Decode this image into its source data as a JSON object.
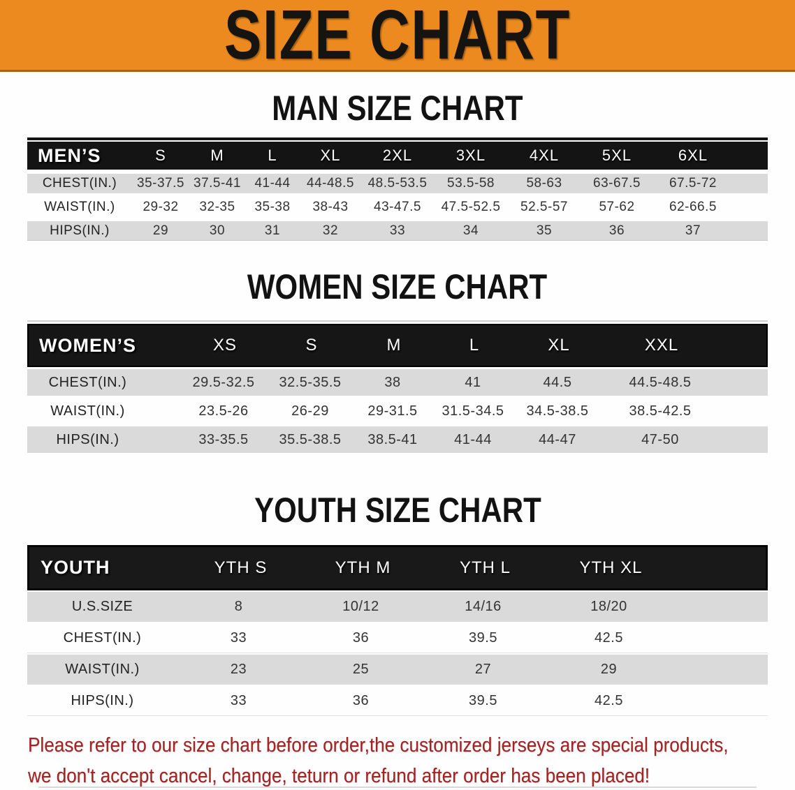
{
  "banner": {
    "title": "SIZE CHART"
  },
  "men": {
    "heading": "MAN SIZE CHART",
    "header": {
      "label": "MEN’S",
      "sizes": [
        "S",
        "M",
        "L",
        "XL",
        "2XL",
        "3XL",
        "4XL",
        "5XL",
        "6XL"
      ]
    },
    "rows": [
      {
        "label": "CHEST(IN.)",
        "values": [
          "35-37.5",
          "37.5-41",
          "41-44",
          "44-48.5",
          "48.5-53.5",
          "53.5-58",
          "58-63",
          "63-67.5",
          "67.5-72"
        ]
      },
      {
        "label": "WAIST(IN.)",
        "values": [
          "29-32",
          "32-35",
          "35-38",
          "38-43",
          "43-47.5",
          "47.5-52.5",
          "52.5-57",
          "57-62",
          "62-66.5"
        ]
      },
      {
        "label": "HIPS(IN.)",
        "values": [
          "29",
          "30",
          "31",
          "32",
          "33",
          "34",
          "35",
          "36",
          "37"
        ]
      }
    ]
  },
  "women": {
    "heading": "WOMEN SIZE CHART",
    "header": {
      "label": "WOMEN’S",
      "sizes": [
        "XS",
        "S",
        "M",
        "L",
        "XL",
        "XXL"
      ]
    },
    "rows": [
      {
        "label": "CHEST(IN.)",
        "values": [
          "29.5-32.5",
          "32.5-35.5",
          "38",
          "41",
          "44.5",
          "44.5-48.5"
        ]
      },
      {
        "label": "WAIST(IN.)",
        "values": [
          "23.5-26",
          "26-29",
          "29-31.5",
          "31.5-34.5",
          "34.5-38.5",
          "38.5-42.5"
        ]
      },
      {
        "label": "HIPS(IN.)",
        "values": [
          "33-35.5",
          "35.5-38.5",
          "38.5-41",
          "41-44",
          "44-47",
          "47-50"
        ]
      }
    ]
  },
  "youth": {
    "heading": "YOUTH SIZE CHART",
    "header": {
      "label": "YOUTH",
      "sizes": [
        "YTH S",
        "YTH M",
        "YTH L",
        "YTH XL"
      ]
    },
    "rows": [
      {
        "label": "U.S.SIZE",
        "values": [
          "8",
          "10/12",
          "14/16",
          "18/20"
        ]
      },
      {
        "label": "CHEST(IN.)",
        "values": [
          "33",
          "36",
          "39.5",
          "42.5"
        ]
      },
      {
        "label": "WAIST(IN.)",
        "values": [
          "23",
          "25",
          "27",
          "29"
        ]
      },
      {
        "label": "HIPS(IN.)",
        "values": [
          "33",
          "36",
          "39.5",
          "42.5"
        ]
      }
    ]
  },
  "disclaimer": {
    "line1": "Please refer to our size chart before order,the customized jerseys are special products,",
    "line2": "we don't accept cancel, change, teturn or refund after order has been placed!"
  },
  "colors": {
    "banner_orange": "#ED8A1F",
    "banner_edge": "#B05E12",
    "header_black": "#161616",
    "row_gray": "#DADADA",
    "disclaimer_red": "#A32424"
  }
}
